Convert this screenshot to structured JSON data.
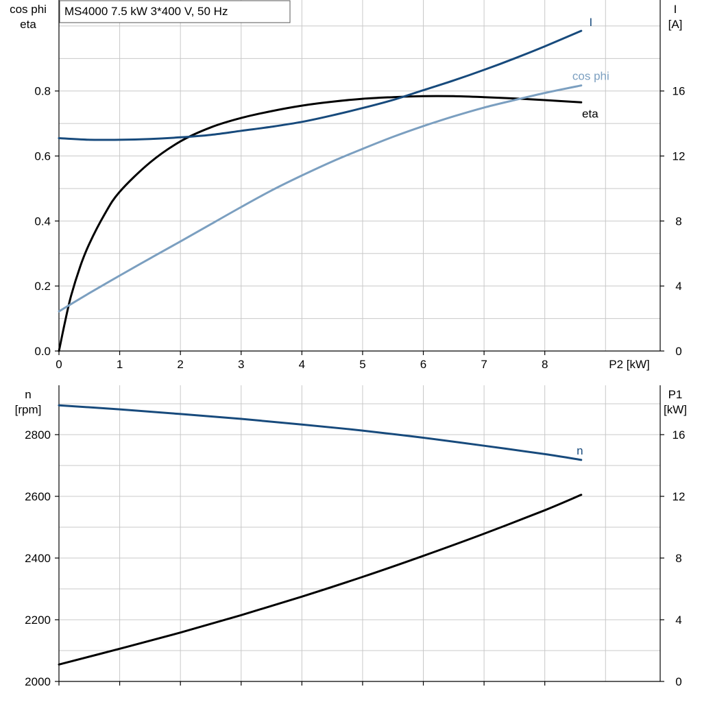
{
  "colors": {
    "dark_blue": "#174a7c",
    "light_blue": "#7b9fc0",
    "black": "#000000",
    "grid": "#c8c8c8"
  },
  "chart_data": [
    {
      "type": "line",
      "title": "MS4000   7.5 kW   3*400 V, 50 Hz",
      "xlabel": "P2 [kW]",
      "ylabel_left": [
        "cos phi",
        "eta"
      ],
      "ylabel_right": [
        "I",
        "[A]"
      ],
      "xlim": [
        0,
        9.9
      ],
      "ylim_left": [
        0,
        1.08
      ],
      "ylim_right": [
        0,
        21.6
      ],
      "x_ticks": [
        0,
        1,
        2,
        3,
        4,
        5,
        6,
        7,
        8
      ],
      "y_ticks_left": [
        "0.0",
        "0.2",
        "0.4",
        "0.6",
        "0.8"
      ],
      "y_ticks_right": [
        "0",
        "4",
        "8",
        "12",
        "16"
      ],
      "grid": true,
      "series": [
        {
          "name": "eta",
          "axis": "left",
          "color": "#000000",
          "x": [
            0,
            0.1,
            0.2,
            0.35,
            0.5,
            0.75,
            1,
            1.5,
            2,
            2.5,
            3,
            3.5,
            4,
            4.5,
            5,
            5.5,
            6,
            6.5,
            7,
            7.5,
            8,
            8.6
          ],
          "y": [
            0,
            0.09,
            0.17,
            0.26,
            0.33,
            0.42,
            0.49,
            0.58,
            0.645,
            0.688,
            0.717,
            0.738,
            0.755,
            0.767,
            0.776,
            0.781,
            0.784,
            0.784,
            0.781,
            0.777,
            0.772,
            0.765
          ]
        },
        {
          "name": "cos phi",
          "axis": "left",
          "color": "#7b9fc0",
          "x": [
            0,
            0.5,
            1,
            1.5,
            2,
            2.5,
            3,
            3.5,
            4,
            4.5,
            5,
            5.5,
            6,
            6.5,
            7,
            7.5,
            8,
            8.6
          ],
          "y": [
            0.122,
            0.178,
            0.232,
            0.285,
            0.337,
            0.39,
            0.443,
            0.494,
            0.54,
            0.583,
            0.622,
            0.659,
            0.692,
            0.722,
            0.749,
            0.772,
            0.794,
            0.817
          ]
        },
        {
          "name": "I",
          "axis": "right",
          "color": "#174a7c",
          "x": [
            0,
            0.5,
            1,
            1.5,
            2,
            2.5,
            3,
            3.5,
            4,
            4.5,
            5,
            5.5,
            6,
            6.5,
            7,
            7.5,
            8,
            8.6
          ],
          "y": [
            13.1,
            13.0,
            13.0,
            13.05,
            13.15,
            13.3,
            13.55,
            13.8,
            14.1,
            14.5,
            14.95,
            15.45,
            16.05,
            16.65,
            17.3,
            18.0,
            18.75,
            19.7
          ]
        }
      ]
    },
    {
      "type": "line",
      "xlabel": "",
      "ylabel_left": [
        "n",
        "[rpm]"
      ],
      "ylabel_right": [
        "P1",
        "[kW]"
      ],
      "xlim": [
        0,
        9.9
      ],
      "ylim_left": [
        2000,
        2960
      ],
      "ylim_right": [
        0,
        19.2
      ],
      "x_ticks": [
        0,
        1,
        2,
        3,
        4,
        5,
        6,
        7,
        8
      ],
      "y_ticks_left": [
        "2000",
        "2200",
        "2400",
        "2600",
        "2800"
      ],
      "y_ticks_right": [
        "0",
        "4",
        "8",
        "12",
        "16"
      ],
      "grid": true,
      "series": [
        {
          "name": "n",
          "axis": "left",
          "color": "#174a7c",
          "x": [
            0,
            1,
            2,
            3,
            4,
            5,
            6,
            7,
            8,
            8.6
          ],
          "y": [
            2895,
            2882,
            2867,
            2851,
            2833,
            2813,
            2790,
            2764,
            2737,
            2718
          ]
        },
        {
          "name": "",
          "axis": "right",
          "color": "#000000",
          "x": [
            0,
            1,
            2,
            3,
            4,
            5,
            6,
            7,
            8,
            8.6
          ],
          "y": [
            1.1,
            2.12,
            3.17,
            4.3,
            5.5,
            6.78,
            8.14,
            9.58,
            11.1,
            12.1
          ]
        }
      ]
    }
  ]
}
